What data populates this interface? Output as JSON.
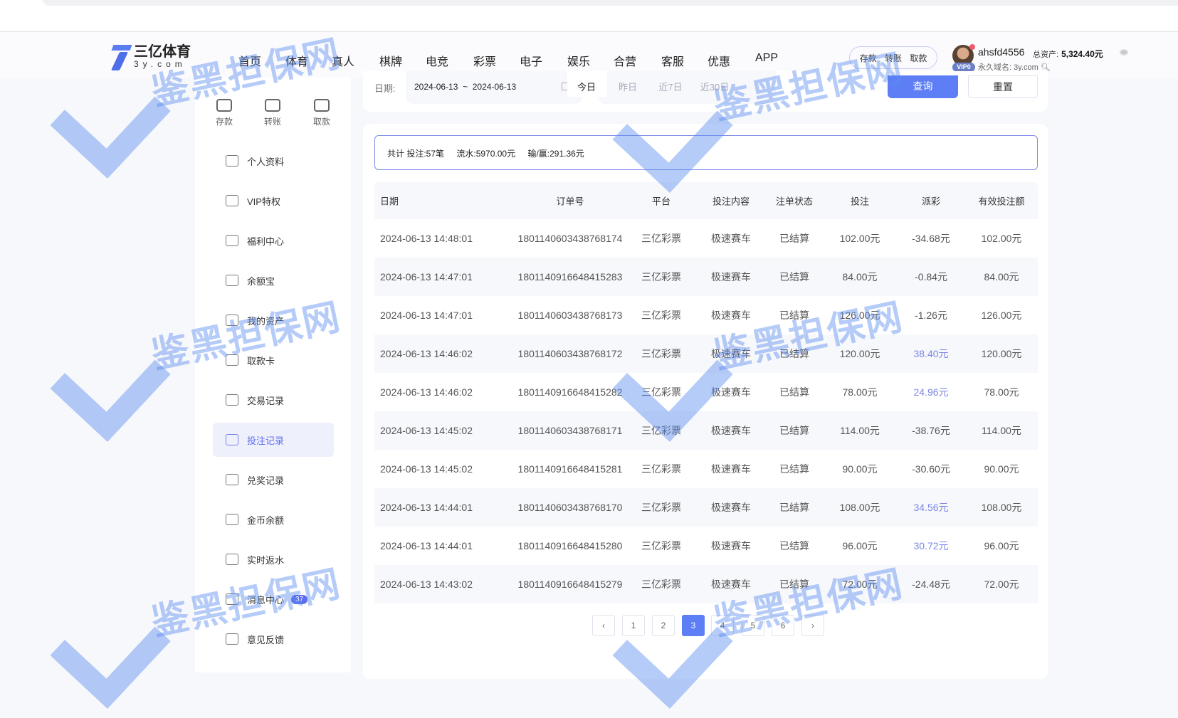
{
  "header": {
    "logo_cn": "三亿体育",
    "logo_en": "3y.com",
    "nav": [
      "首页",
      "体育",
      "真人",
      "棋牌",
      "电竞",
      "彩票",
      "电子",
      "娱乐",
      "合营",
      "客服",
      "优惠",
      "APP"
    ],
    "quick": [
      "存款",
      "转账",
      "取款"
    ],
    "username": "ahsfd4556",
    "vip": "VIP0",
    "assets_label": "总资产:",
    "assets_value": "5,324.40元",
    "domain": "永久域名: 3y.com"
  },
  "sidebar": {
    "quick": [
      {
        "label": "存款",
        "icon": "wallet-icon"
      },
      {
        "label": "转账",
        "icon": "transfer-icon"
      },
      {
        "label": "取款",
        "icon": "withdraw-icon"
      }
    ],
    "items": [
      {
        "label": "个人资料",
        "icon": "id-card-icon"
      },
      {
        "label": "VIP特权",
        "icon": "crown-icon"
      },
      {
        "label": "福利中心",
        "icon": "gift-icon"
      },
      {
        "label": "余额宝",
        "icon": "money-bag-icon"
      },
      {
        "label": "我的资产",
        "icon": "assets-icon"
      },
      {
        "label": "取款卡",
        "icon": "card-icon"
      },
      {
        "label": "交易记录",
        "icon": "list-icon"
      },
      {
        "label": "投注记录",
        "icon": "bet-record-icon",
        "active": true
      },
      {
        "label": "兑奖记录",
        "icon": "clipboard-icon"
      },
      {
        "label": "金币余额",
        "icon": "coin-icon"
      },
      {
        "label": "实时返水",
        "icon": "rebate-icon"
      },
      {
        "label": "消息中心",
        "icon": "mail-icon",
        "badge": "37"
      },
      {
        "label": "意见反馈",
        "icon": "feedback-icon"
      }
    ]
  },
  "filter": {
    "date_label": "日期:",
    "start": "2024-06-13",
    "sep": "~",
    "end": "2024-06-13",
    "quick": [
      "今日",
      "昨日",
      "近7日",
      "近30日"
    ],
    "query": "查询",
    "reset": "重置"
  },
  "summary": {
    "total": "共计 投注:57笔",
    "flow": "流水:5970.00元",
    "winloss": "输/赢:291.36元"
  },
  "table": {
    "columns": [
      "日期",
      "订单号",
      "平台",
      "投注内容",
      "注单状态",
      "投注",
      "派彩",
      "有效投注额"
    ],
    "rows": [
      [
        "2024-06-13 14:48:01",
        "1801140603438768174",
        "三亿彩票",
        "极速赛车",
        "已结算",
        "102.00元",
        "-34.68元",
        "102.00元"
      ],
      [
        "2024-06-13 14:47:01",
        "1801140916648415283",
        "三亿彩票",
        "极速赛车",
        "已结算",
        "84.00元",
        "-0.84元",
        "84.00元"
      ],
      [
        "2024-06-13 14:47:01",
        "1801140603438768173",
        "三亿彩票",
        "极速赛车",
        "已结算",
        "126.00元",
        "-1.26元",
        "126.00元"
      ],
      [
        "2024-06-13 14:46:02",
        "1801140603438768172",
        "三亿彩票",
        "极速赛车",
        "已结算",
        "120.00元",
        "38.40元",
        "120.00元"
      ],
      [
        "2024-06-13 14:46:02",
        "1801140916648415282",
        "三亿彩票",
        "极速赛车",
        "已结算",
        "78.00元",
        "24.96元",
        "78.00元"
      ],
      [
        "2024-06-13 14:45:02",
        "1801140603438768171",
        "三亿彩票",
        "极速赛车",
        "已结算",
        "114.00元",
        "-38.76元",
        "114.00元"
      ],
      [
        "2024-06-13 14:45:02",
        "1801140916648415281",
        "三亿彩票",
        "极速赛车",
        "已结算",
        "90.00元",
        "-30.60元",
        "90.00元"
      ],
      [
        "2024-06-13 14:44:01",
        "1801140603438768170",
        "三亿彩票",
        "极速赛车",
        "已结算",
        "108.00元",
        "34.56元",
        "108.00元"
      ],
      [
        "2024-06-13 14:44:01",
        "1801140916648415280",
        "三亿彩票",
        "极速赛车",
        "已结算",
        "96.00元",
        "30.72元",
        "96.00元"
      ],
      [
        "2024-06-13 14:43:02",
        "1801140916648415279",
        "三亿彩票",
        "极速赛车",
        "已结算",
        "72.00元",
        "-24.48元",
        "72.00元"
      ]
    ]
  },
  "pagination": {
    "prev": "‹",
    "pages": [
      "1",
      "2",
      "3",
      "4",
      "5",
      "6"
    ],
    "current": "3",
    "next": "›"
  },
  "watermark": "鉴黑担保网",
  "colors": {
    "accent": "#5d7ef5",
    "positive_payout": "#7b86e6",
    "active_menu_bg": "#eef0fc"
  }
}
